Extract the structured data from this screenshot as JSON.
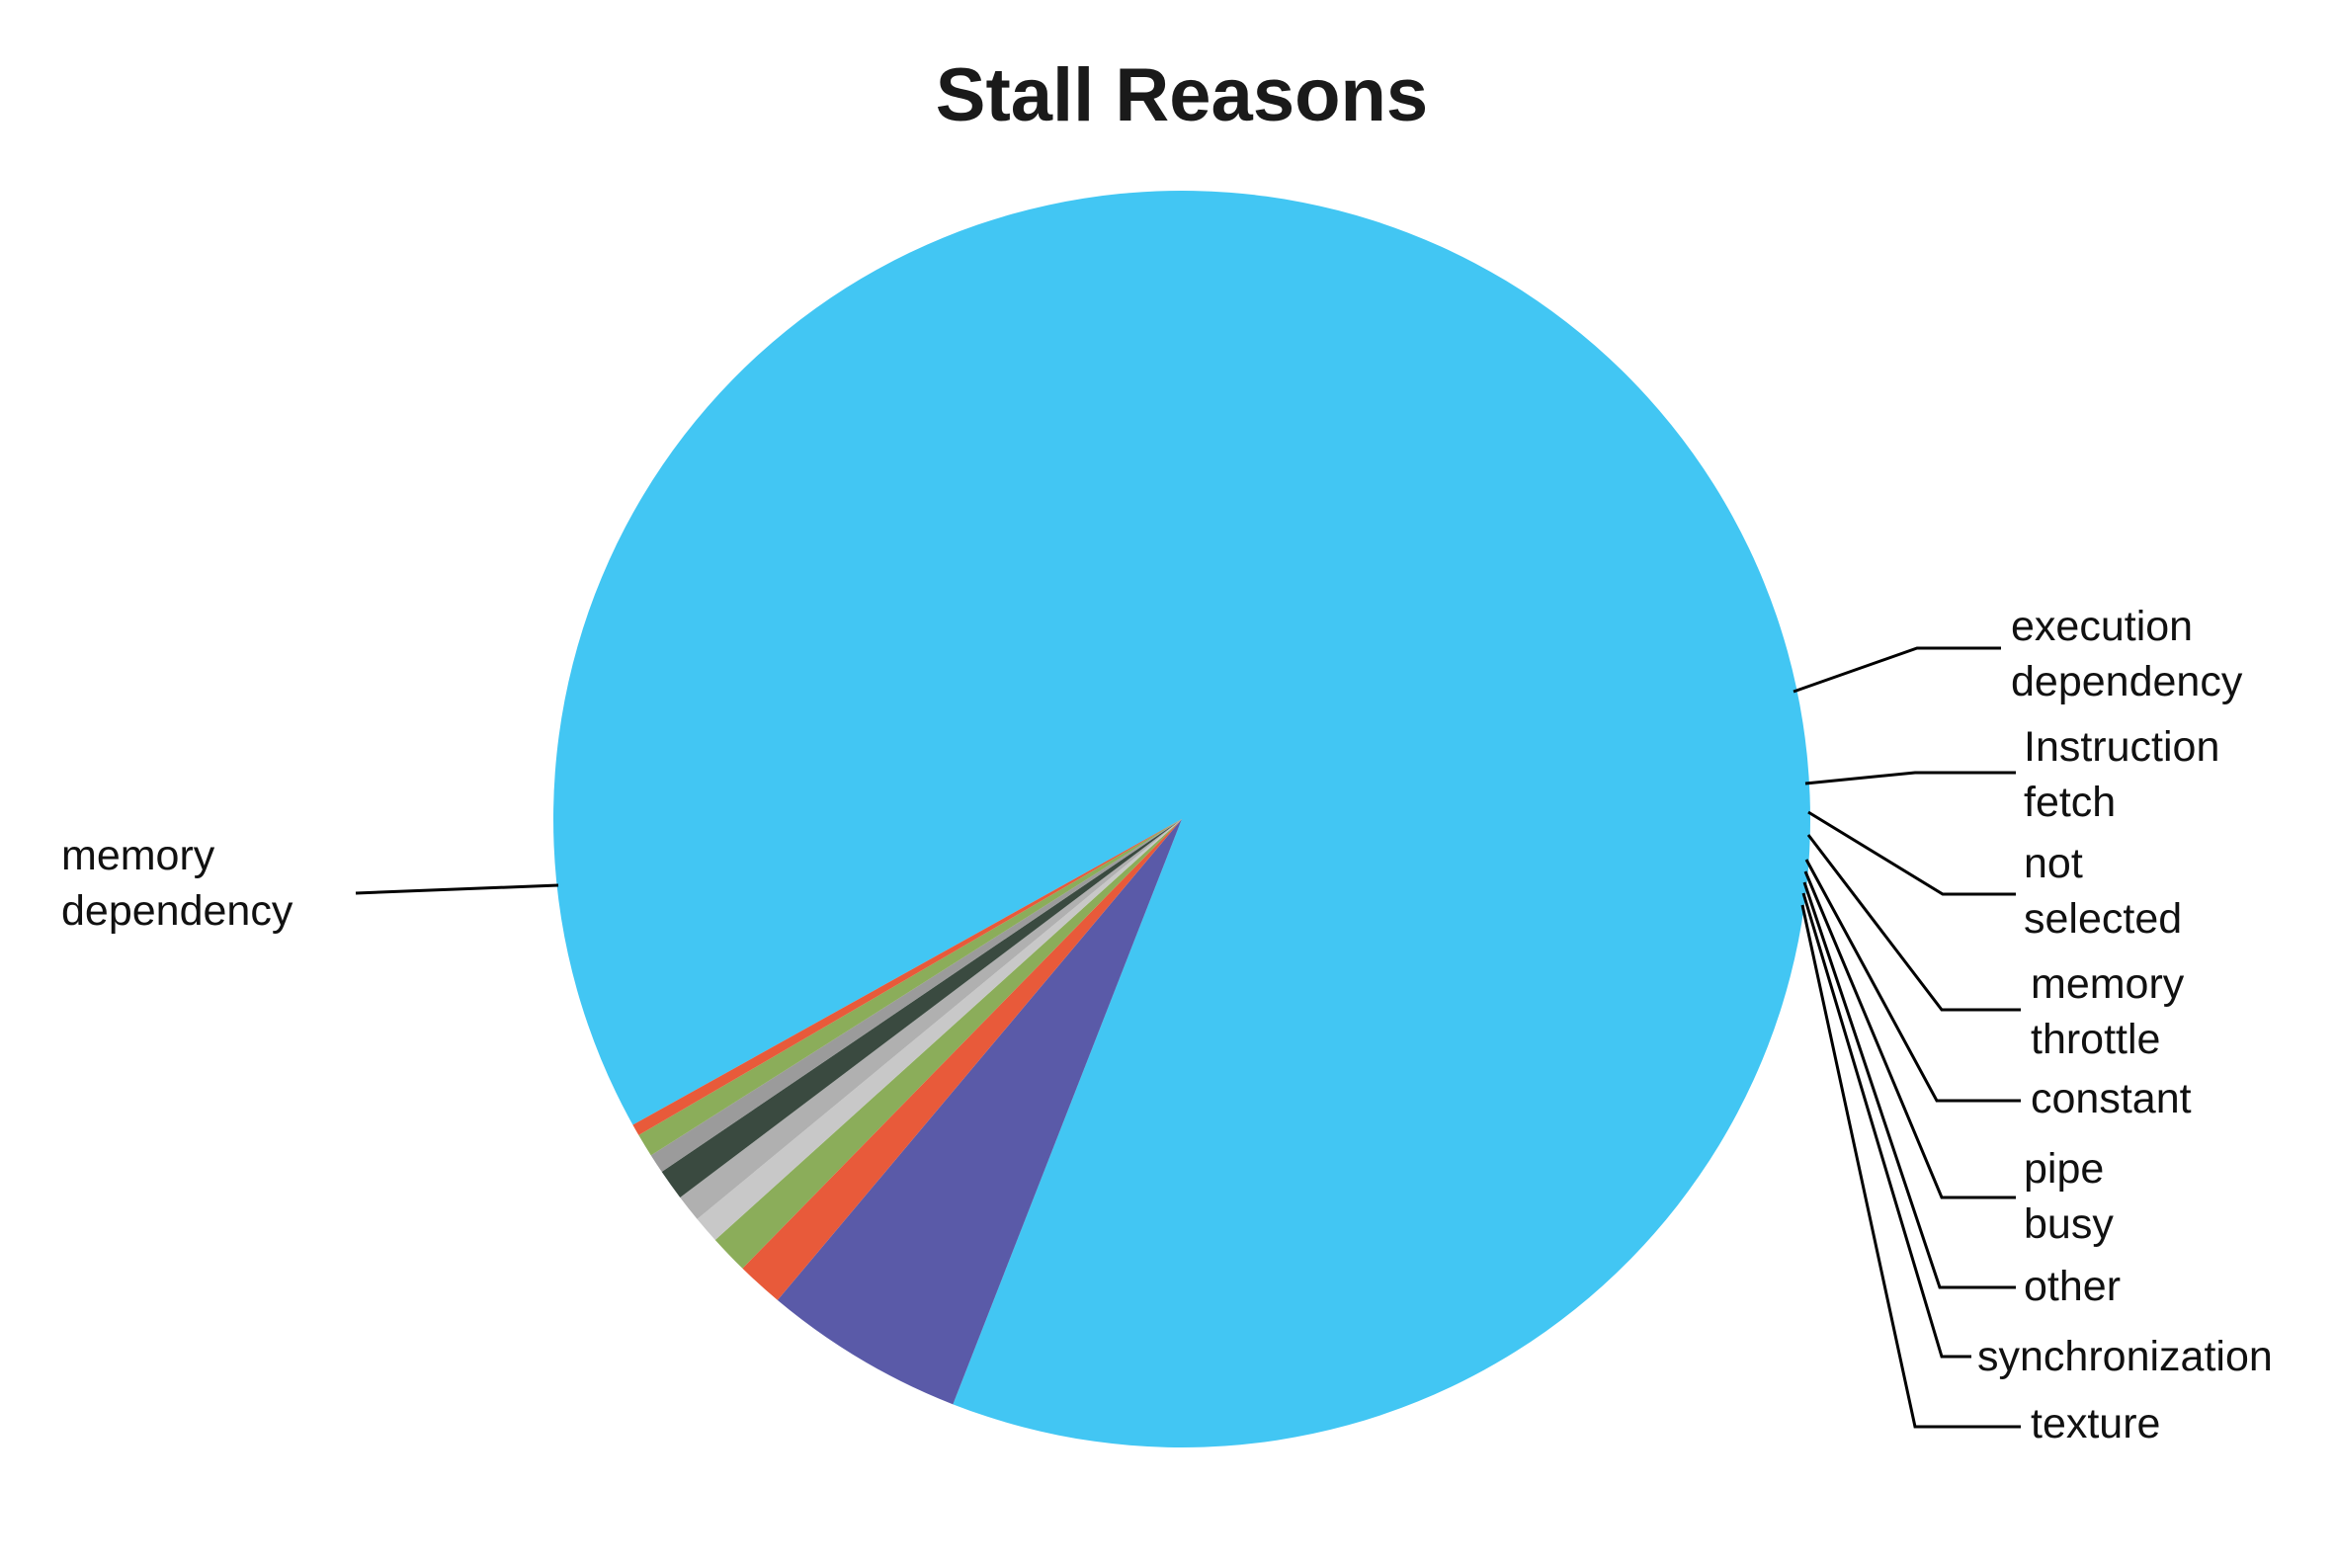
{
  "chart_data": {
    "type": "pie",
    "title": "Stall Reasons",
    "slices": [
      {
        "label": "memory dependency",
        "value": 89.2,
        "color": "#42c6f3"
      },
      {
        "label": "execution dependency",
        "value": 5.2,
        "color": "#5a5aa8"
      },
      {
        "label": "Instruction fetch",
        "value": 1.2,
        "color": "#e85a3a"
      },
      {
        "label": "not selected",
        "value": 1.0,
        "color": "#8bad5a"
      },
      {
        "label": "memory throttle",
        "value": 0.7,
        "color": "#c8c8c8"
      },
      {
        "label": "constant",
        "value": 0.7,
        "color": "#b0b0b0"
      },
      {
        "label": "pipe busy",
        "value": 0.8,
        "color": "#3a4a40"
      },
      {
        "label": "other",
        "value": 0.5,
        "color": "#9b9b9b"
      },
      {
        "label": "synchronization",
        "value": 0.6,
        "color": "#8bad5a"
      },
      {
        "label": "texture",
        "value": 0.3,
        "color": "#e85a3a"
      }
    ],
    "legend": "none",
    "data_labels": "outside with leader lines"
  }
}
